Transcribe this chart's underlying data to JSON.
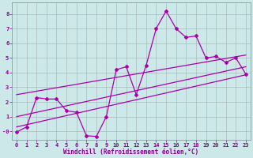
{
  "xlabel": "Windchill (Refroidissement éolien,°C)",
  "bg_color": "#cce8e8",
  "grid_color": "#aabbbb",
  "line_color": "#aa00aa",
  "spine_color": "#888888",
  "tick_color": "#880088",
  "xlim": [
    -0.5,
    23.5
  ],
  "ylim": [
    -0.6,
    8.8
  ],
  "yticks": [
    0,
    1,
    2,
    3,
    4,
    5,
    6,
    7,
    8
  ],
  "ytick_labels": [
    "-0",
    "1",
    "2",
    "3",
    "4",
    "5",
    "6",
    "7",
    "8"
  ],
  "xticks": [
    0,
    1,
    2,
    3,
    4,
    5,
    6,
    7,
    8,
    9,
    10,
    11,
    12,
    13,
    14,
    15,
    16,
    17,
    18,
    19,
    20,
    21,
    22,
    23
  ],
  "series1_x": [
    0,
    1,
    2,
    3,
    4,
    5,
    6,
    7,
    8,
    9,
    10,
    11,
    12,
    13,
    14,
    15,
    16,
    17,
    18,
    19,
    20,
    21,
    22,
    23
  ],
  "series1_y": [
    -0.05,
    0.3,
    2.3,
    2.2,
    2.2,
    1.4,
    1.3,
    -0.3,
    -0.35,
    1.0,
    4.2,
    4.4,
    2.5,
    4.5,
    7.0,
    8.2,
    7.0,
    6.4,
    6.5,
    5.0,
    5.1,
    4.7,
    5.0,
    3.9
  ],
  "series2_x": [
    0,
    23
  ],
  "series2_y": [
    1.0,
    4.4
  ],
  "series3_x": [
    0,
    23
  ],
  "series3_y": [
    2.5,
    5.2
  ],
  "series4_x": [
    0,
    23
  ],
  "series4_y": [
    0.3,
    3.85
  ]
}
